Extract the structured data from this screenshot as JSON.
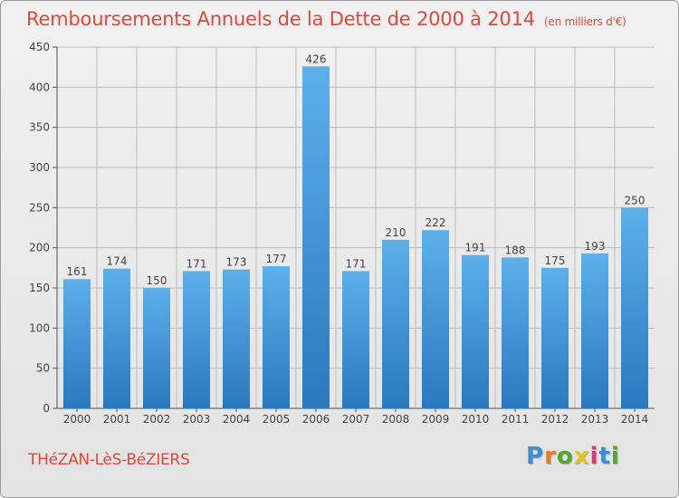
{
  "title": "Remboursements Annuels de la Dette de 2000 à 2014",
  "unit_note": "(en milliers d'€)",
  "commune": "THéZAN-LèS-BéZIERS",
  "logo": {
    "letters": [
      "P",
      "r",
      "o",
      "x",
      "i",
      "t",
      "i"
    ],
    "colors": [
      "#3b8fd6",
      "#f07a1a",
      "#52a82e",
      "#e8c21a",
      "#d93a7a",
      "#3b8fd6",
      "#52a82e"
    ]
  },
  "colors": {
    "title": "#e0483c",
    "bar_top": "#5db0ea",
    "bar_bottom": "#2a78be",
    "grid": "#bdbdbd"
  },
  "chart_data": {
    "type": "bar",
    "title": "Remboursements Annuels de la Dette de 2000 à 2014",
    "categories": [
      "2000",
      "2001",
      "2002",
      "2003",
      "2004",
      "2005",
      "2006",
      "2007",
      "2008",
      "2009",
      "2010",
      "2011",
      "2012",
      "2013",
      "2014"
    ],
    "values": [
      161,
      174,
      150,
      171,
      173,
      177,
      426,
      171,
      210,
      222,
      191,
      188,
      175,
      193,
      250
    ],
    "ylim": [
      0,
      450
    ],
    "yticks": [
      0,
      50,
      100,
      150,
      200,
      250,
      300,
      350,
      400,
      450
    ],
    "grid": true
  }
}
